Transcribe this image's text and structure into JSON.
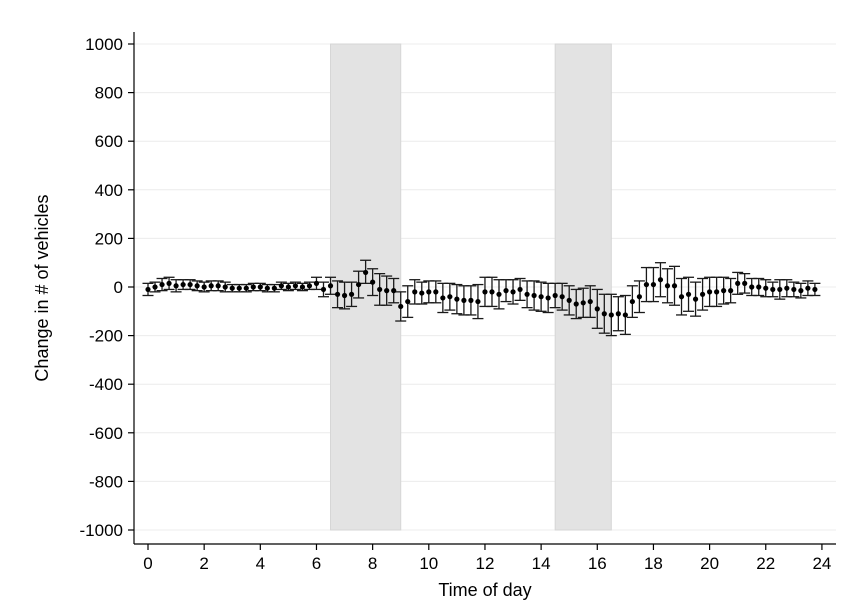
{
  "chart_data": {
    "type": "scatter",
    "xlabel": "Time of day",
    "ylabel": "Change in # of vehicles",
    "xlim": [
      -0.6,
      24.5
    ],
    "ylim": [
      -1050,
      1050
    ],
    "xticks": [
      0,
      2,
      4,
      6,
      8,
      10,
      12,
      14,
      16,
      18,
      20,
      22,
      24
    ],
    "yticks": [
      -1000,
      -800,
      -600,
      -400,
      -200,
      0,
      200,
      400,
      600,
      800,
      1000
    ],
    "grid": "horizontal",
    "legend": "none",
    "shaded_regions": [
      {
        "x0": 6.5,
        "x1": 9.0,
        "y0": -1000,
        "y1": 1000
      },
      {
        "x0": 14.5,
        "x1": 16.5,
        "y0": -1000,
        "y1": 1000
      }
    ],
    "x": [
      0,
      0.25,
      0.5,
      0.75,
      1,
      1.25,
      1.5,
      1.75,
      2,
      2.25,
      2.5,
      2.75,
      3,
      3.25,
      3.5,
      3.75,
      4,
      4.25,
      4.5,
      4.75,
      5,
      5.25,
      5.5,
      5.75,
      6,
      6.25,
      6.5,
      6.75,
      7,
      7.25,
      7.5,
      7.75,
      8,
      8.25,
      8.5,
      8.75,
      9,
      9.25,
      9.5,
      9.75,
      10,
      10.25,
      10.5,
      10.75,
      11,
      11.25,
      11.5,
      11.75,
      12,
      12.25,
      12.5,
      12.75,
      13,
      13.25,
      13.5,
      13.75,
      14,
      14.25,
      14.5,
      14.75,
      15,
      15.25,
      15.5,
      15.75,
      16,
      16.25,
      16.5,
      16.75,
      17,
      17.25,
      17.5,
      17.75,
      18,
      18.25,
      18.5,
      18.75,
      19,
      19.25,
      19.5,
      19.75,
      20,
      20.25,
      20.5,
      20.75,
      21,
      21.25,
      21.5,
      21.75,
      22,
      22.25,
      22.5,
      22.75,
      23,
      23.25,
      23.5,
      23.75
    ],
    "series": [
      {
        "estimate": [
          -10,
          0,
          10,
          15,
          5,
          10,
          10,
          5,
          0,
          5,
          5,
          0,
          -5,
          -5,
          -5,
          0,
          0,
          -5,
          -5,
          5,
          0,
          5,
          0,
          5,
          15,
          -10,
          5,
          -30,
          -35,
          -30,
          10,
          60,
          20,
          -10,
          -15,
          -15,
          -80,
          -60,
          -20,
          -25,
          -20,
          -20,
          -45,
          -40,
          -50,
          -55,
          -55,
          -60,
          -20,
          -20,
          -30,
          -15,
          -20,
          -10,
          -30,
          -35,
          -40,
          -45,
          -35,
          -40,
          -55,
          -70,
          -65,
          -60,
          -90,
          -110,
          -115,
          -110,
          -115,
          -60,
          -40,
          10,
          10,
          30,
          5,
          5,
          -40,
          -30,
          -50,
          -30,
          -20,
          -20,
          -15,
          -15,
          15,
          15,
          0,
          0,
          -5,
          -10,
          -10,
          -5,
          -10,
          -15,
          -5,
          -10,
          -10,
          -15
        ],
        "ci_low": [
          -35,
          -20,
          -15,
          -10,
          -20,
          -10,
          -10,
          -15,
          -20,
          -15,
          -15,
          -20,
          -20,
          -20,
          -20,
          -15,
          -15,
          -20,
          -20,
          -10,
          -15,
          -10,
          -15,
          -10,
          -10,
          -40,
          -30,
          -85,
          -90,
          -80,
          -45,
          15,
          -35,
          -75,
          -75,
          -65,
          -140,
          -125,
          -70,
          -70,
          -65,
          -65,
          -105,
          -95,
          -110,
          -115,
          -115,
          -130,
          -80,
          -80,
          -90,
          -60,
          -70,
          -55,
          -85,
          -95,
          -100,
          -105,
          -85,
          -95,
          -115,
          -130,
          -125,
          -125,
          -170,
          -190,
          -200,
          -180,
          -195,
          -125,
          -105,
          -60,
          -60,
          -40,
          -65,
          -75,
          -115,
          -100,
          -120,
          -95,
          -80,
          -80,
          -70,
          -65,
          -30,
          -25,
          -35,
          -35,
          -40,
          -40,
          -50,
          -40,
          -40,
          -45,
          -35,
          -35,
          -35,
          -35
        ],
        "ci_high": [
          15,
          20,
          35,
          40,
          30,
          30,
          30,
          25,
          20,
          25,
          25,
          20,
          10,
          10,
          10,
          15,
          15,
          10,
          10,
          20,
          15,
          20,
          15,
          20,
          40,
          20,
          40,
          25,
          20,
          20,
          65,
          110,
          75,
          55,
          45,
          35,
          -20,
          5,
          30,
          20,
          25,
          25,
          15,
          15,
          10,
          5,
          5,
          10,
          40,
          40,
          30,
          30,
          30,
          35,
          25,
          25,
          20,
          15,
          15,
          15,
          5,
          -10,
          -5,
          5,
          -10,
          -30,
          -30,
          -40,
          -35,
          5,
          25,
          80,
          80,
          100,
          75,
          85,
          35,
          40,
          20,
          35,
          40,
          40,
          40,
          35,
          60,
          55,
          35,
          35,
          30,
          20,
          30,
          30,
          20,
          15,
          25,
          15,
          15,
          5
        ]
      }
    ]
  }
}
